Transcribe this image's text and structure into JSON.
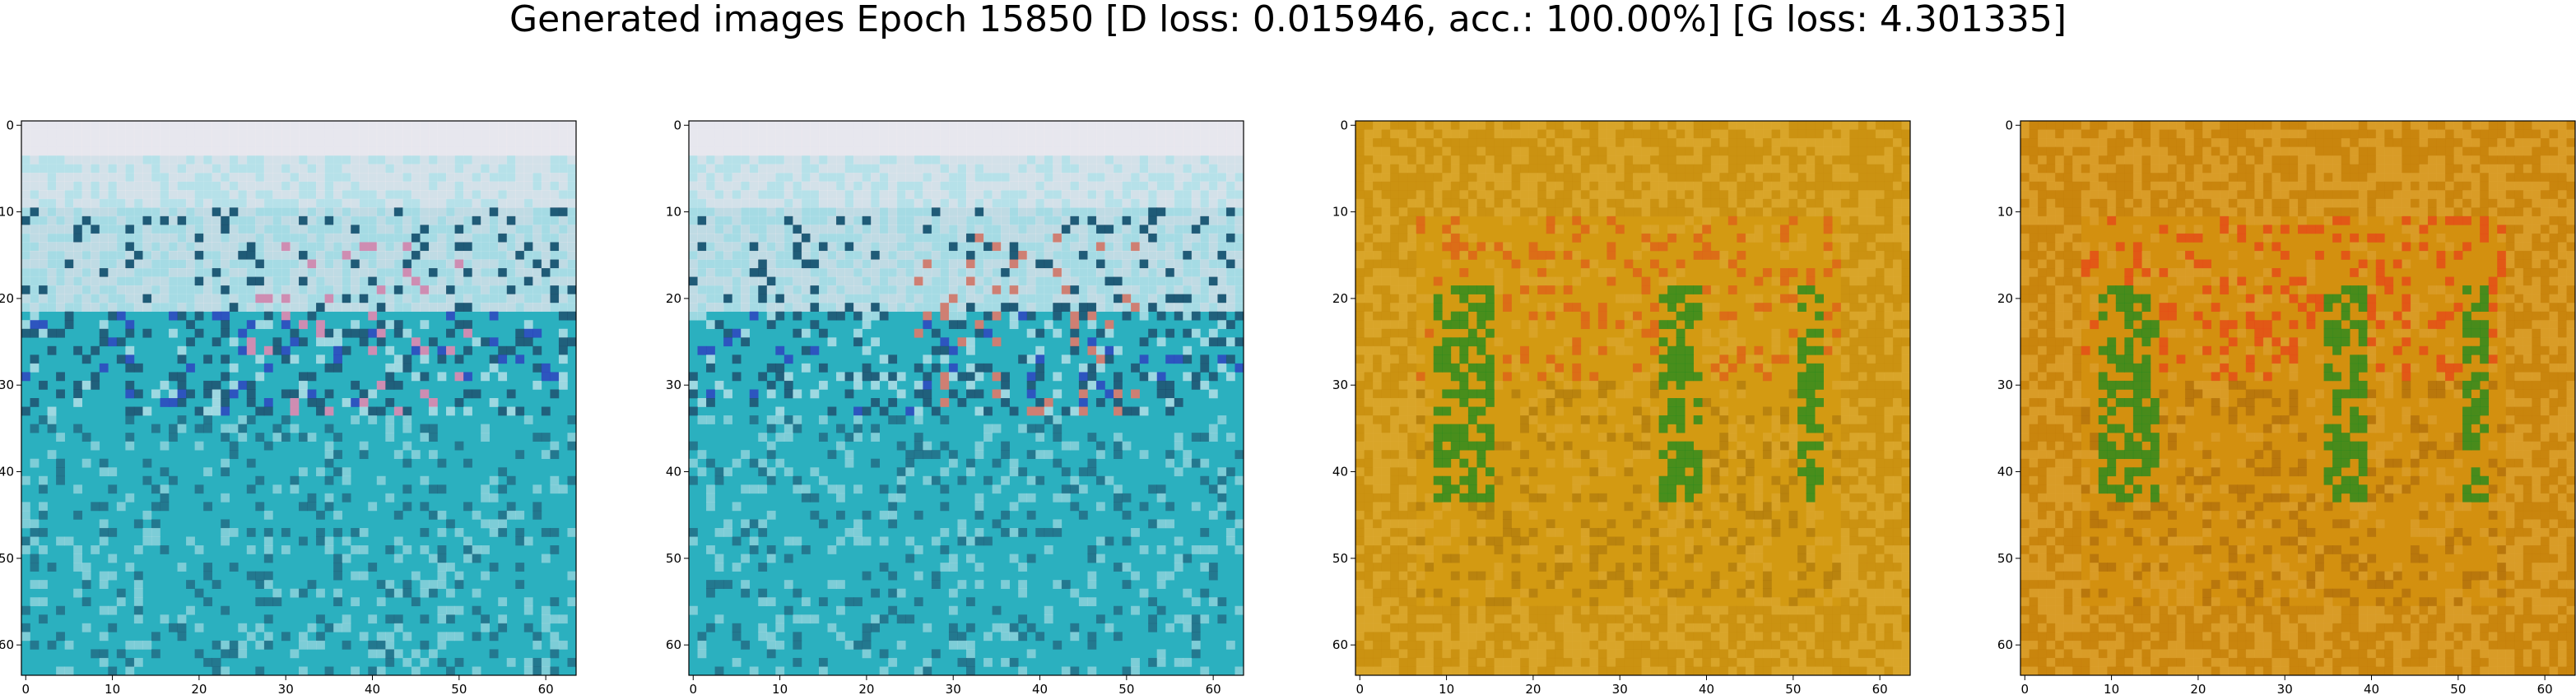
{
  "chart_data": {
    "type": "image-grid",
    "title": "Generated images Epoch 15850 [D loss: 0.015946, acc.: 100.00%] [G loss: 4.301335]",
    "panels": [
      {
        "palette": "cyan",
        "xlim": [
          0,
          63
        ],
        "ylim": [
          63,
          0
        ],
        "xticks": [
          0,
          10,
          20,
          30,
          40,
          50,
          60
        ],
        "yticks": [
          0,
          10,
          20,
          30,
          40,
          50,
          60
        ],
        "colors": {
          "base": "#2bb0bf",
          "top": "#f1eaf0",
          "mid": "#cfeaf0",
          "dark": "#1c3f5f",
          "accent": "#2f2fbf",
          "warm": "#e08ab0"
        }
      },
      {
        "palette": "cyan",
        "xlim": [
          0,
          63
        ],
        "ylim": [
          63,
          0
        ],
        "xticks": [
          0,
          10,
          20,
          30,
          40,
          50,
          60
        ],
        "yticks": [
          0,
          10,
          20,
          30,
          40,
          50,
          60
        ],
        "colors": {
          "base": "#2bb0bf",
          "top": "#f1eaf0",
          "mid": "#cfeaf0",
          "dark": "#1c3f5f",
          "accent": "#2f2fbf",
          "warm": "#e07a6a"
        }
      },
      {
        "palette": "ochre",
        "xlim": [
          0,
          63
        ],
        "ylim": [
          63,
          0
        ],
        "xticks": [
          0,
          10,
          20,
          30,
          40,
          50,
          60
        ],
        "yticks": [
          0,
          10,
          20,
          30,
          40,
          50,
          60
        ],
        "colors": {
          "base": "#d39a12",
          "top": "#c48a10",
          "mid": "#e0b040",
          "dark": "#8a5a08",
          "accent": "#1a8a20",
          "warm": "#e05a1a"
        }
      },
      {
        "palette": "ochre",
        "xlim": [
          0,
          63
        ],
        "ylim": [
          63,
          0
        ],
        "xticks": [
          0,
          10,
          20,
          30,
          40,
          50,
          60
        ],
        "yticks": [
          0,
          10,
          20,
          30,
          40,
          50,
          60
        ],
        "colors": {
          "base": "#d3900f",
          "top": "#c07a0c",
          "mid": "#e0a840",
          "dark": "#8a4a08",
          "accent": "#1a8a20",
          "warm": "#e8401a"
        }
      }
    ]
  }
}
